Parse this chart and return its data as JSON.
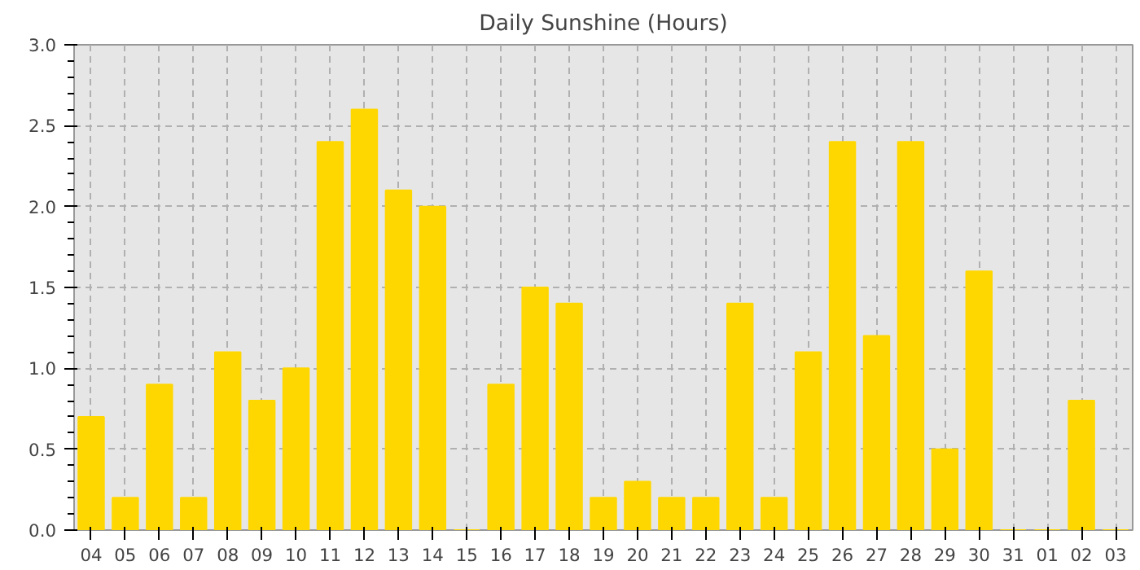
{
  "chart_data": {
    "type": "bar",
    "title": "Daily Sunshine (Hours)",
    "categories": [
      "04",
      "05",
      "06",
      "07",
      "08",
      "09",
      "10",
      "11",
      "12",
      "13",
      "14",
      "15",
      "16",
      "17",
      "18",
      "19",
      "20",
      "21",
      "22",
      "23",
      "24",
      "25",
      "26",
      "27",
      "28",
      "29",
      "30",
      "31",
      "01",
      "02",
      "03"
    ],
    "values": [
      0.7,
      0.2,
      0.9,
      0.2,
      1.1,
      0.8,
      1.0,
      2.4,
      2.6,
      2.1,
      2.0,
      0,
      0.9,
      1.5,
      1.4,
      0.2,
      0.3,
      0.2,
      0.2,
      1.4,
      0.2,
      1.1,
      2.4,
      1.2,
      2.4,
      0.5,
      1.6,
      0,
      0,
      0.8,
      0
    ],
    "color": "#ffd700",
    "ylim": [
      0,
      3.0
    ],
    "yticks": [
      {
        "value": 0,
        "label": "0.0"
      },
      {
        "value": 0.5,
        "label": "0.5"
      },
      {
        "value": 1.0,
        "label": "1.0"
      },
      {
        "value": 1.5,
        "label": "1.5"
      },
      {
        "value": 2.0,
        "label": "2.0"
      },
      {
        "value": 2.5,
        "label": "2.5"
      },
      {
        "value": 3.0,
        "label": "3.0"
      }
    ],
    "grid": true
  }
}
